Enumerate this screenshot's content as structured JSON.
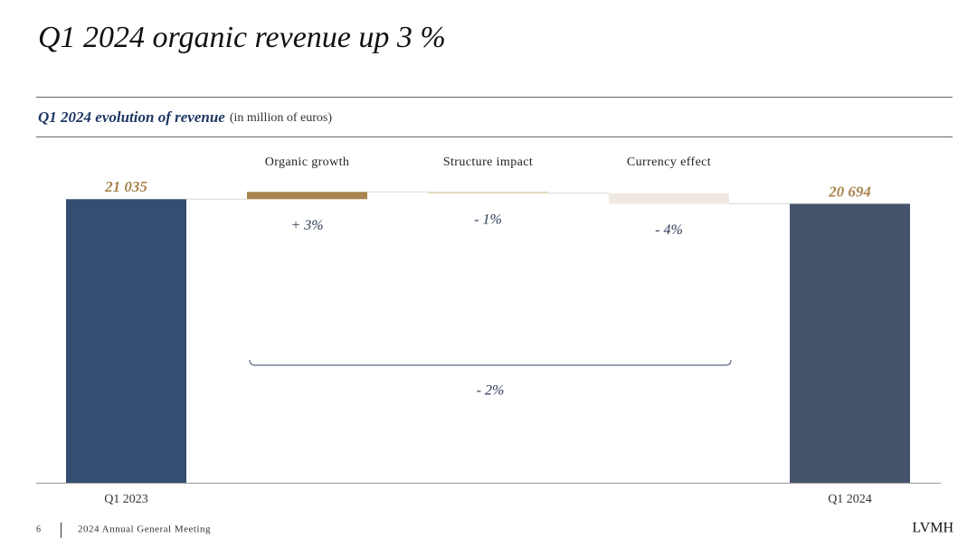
{
  "slide": {
    "title": "Q1 2024 organic revenue up 3 %",
    "page_number": "6",
    "event": "2024 Annual General Meeting",
    "brand": "LVMH"
  },
  "chart_data": {
    "type": "waterfall",
    "title": "Q1 2024 evolution of revenue",
    "subtitle": "(in million of euros)",
    "categories": [
      "Q1 2023",
      "Organic growth",
      "Structure impact",
      "Currency effect",
      "Q1 2024"
    ],
    "values": [
      21035,
      540,
      -100,
      -781,
      20694
    ],
    "value_labels": [
      "21 035",
      null,
      null,
      null,
      "20 694"
    ],
    "colors": [
      "#344d70",
      "#a8844e",
      "#dccdae",
      "#efe9df",
      "#45546b"
    ],
    "percent_changes": [
      null,
      3,
      -1,
      -4,
      null
    ],
    "percent_labels": [
      null,
      "+ 3%",
      "- 1%",
      "- 4%",
      null
    ],
    "total_change": {
      "value": -2,
      "label": "- 2%"
    },
    "ylim": [
      0,
      23000
    ]
  }
}
